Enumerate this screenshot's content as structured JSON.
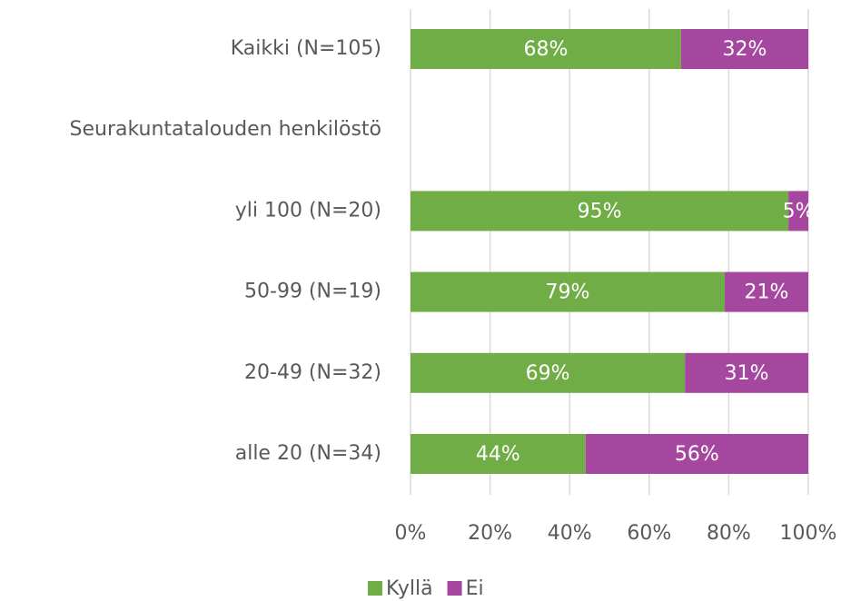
{
  "chart_data": {
    "type": "stacked-bar-horizontal",
    "categories": [
      "Kaikki (N=105)",
      "Seurakuntatalouden henkilöstö",
      "yli 100 (N=20)",
      "50-99 (N=19)",
      "20-49 (N=32)",
      "alle 20 (N=34)"
    ],
    "series": [
      {
        "name": "Kyllä",
        "color": "#70ad47",
        "values": [
          68,
          null,
          95,
          79,
          69,
          44
        ],
        "value_labels": [
          "68%",
          null,
          "95%",
          "79%",
          "69%",
          "44%"
        ]
      },
      {
        "name": "Ei",
        "color": "#a5479f",
        "values": [
          32,
          null,
          5,
          21,
          31,
          56
        ],
        "value_labels": [
          "32%",
          null,
          "5%",
          "21%",
          "31%",
          "56%"
        ]
      }
    ],
    "xlim": [
      0,
      100
    ],
    "xticks": [
      {
        "value": 0,
        "label": "0%"
      },
      {
        "value": 20,
        "label": "20%"
      },
      {
        "value": 40,
        "label": "40%"
      },
      {
        "value": 60,
        "label": "60%"
      },
      {
        "value": 80,
        "label": "80%"
      },
      {
        "value": 100,
        "label": "100%"
      }
    ],
    "grid": true,
    "legend": "bottom"
  }
}
